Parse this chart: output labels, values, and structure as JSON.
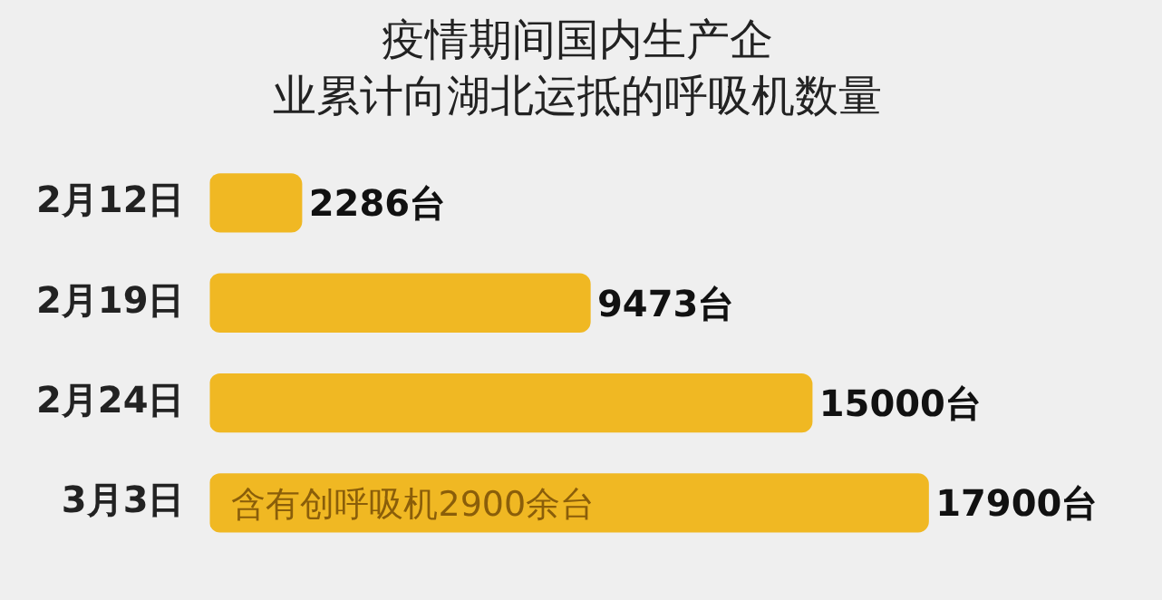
{
  "chart_data": {
    "type": "bar",
    "orientation": "horizontal",
    "title": "疫情期间国内生产企业累计向湖北运抵的呼吸机数量",
    "categories": [
      "2月12日",
      "2月19日",
      "2月24日",
      "3月3日"
    ],
    "values": [
      2286,
      9473,
      15000,
      17900
    ],
    "value_labels": [
      "2286台",
      "9473台",
      "15000台",
      "17900台"
    ],
    "color": "#f0b823",
    "annotations": [
      "含有创呼吸机2900余台"
    ],
    "grid": false,
    "legend": false
  }
}
